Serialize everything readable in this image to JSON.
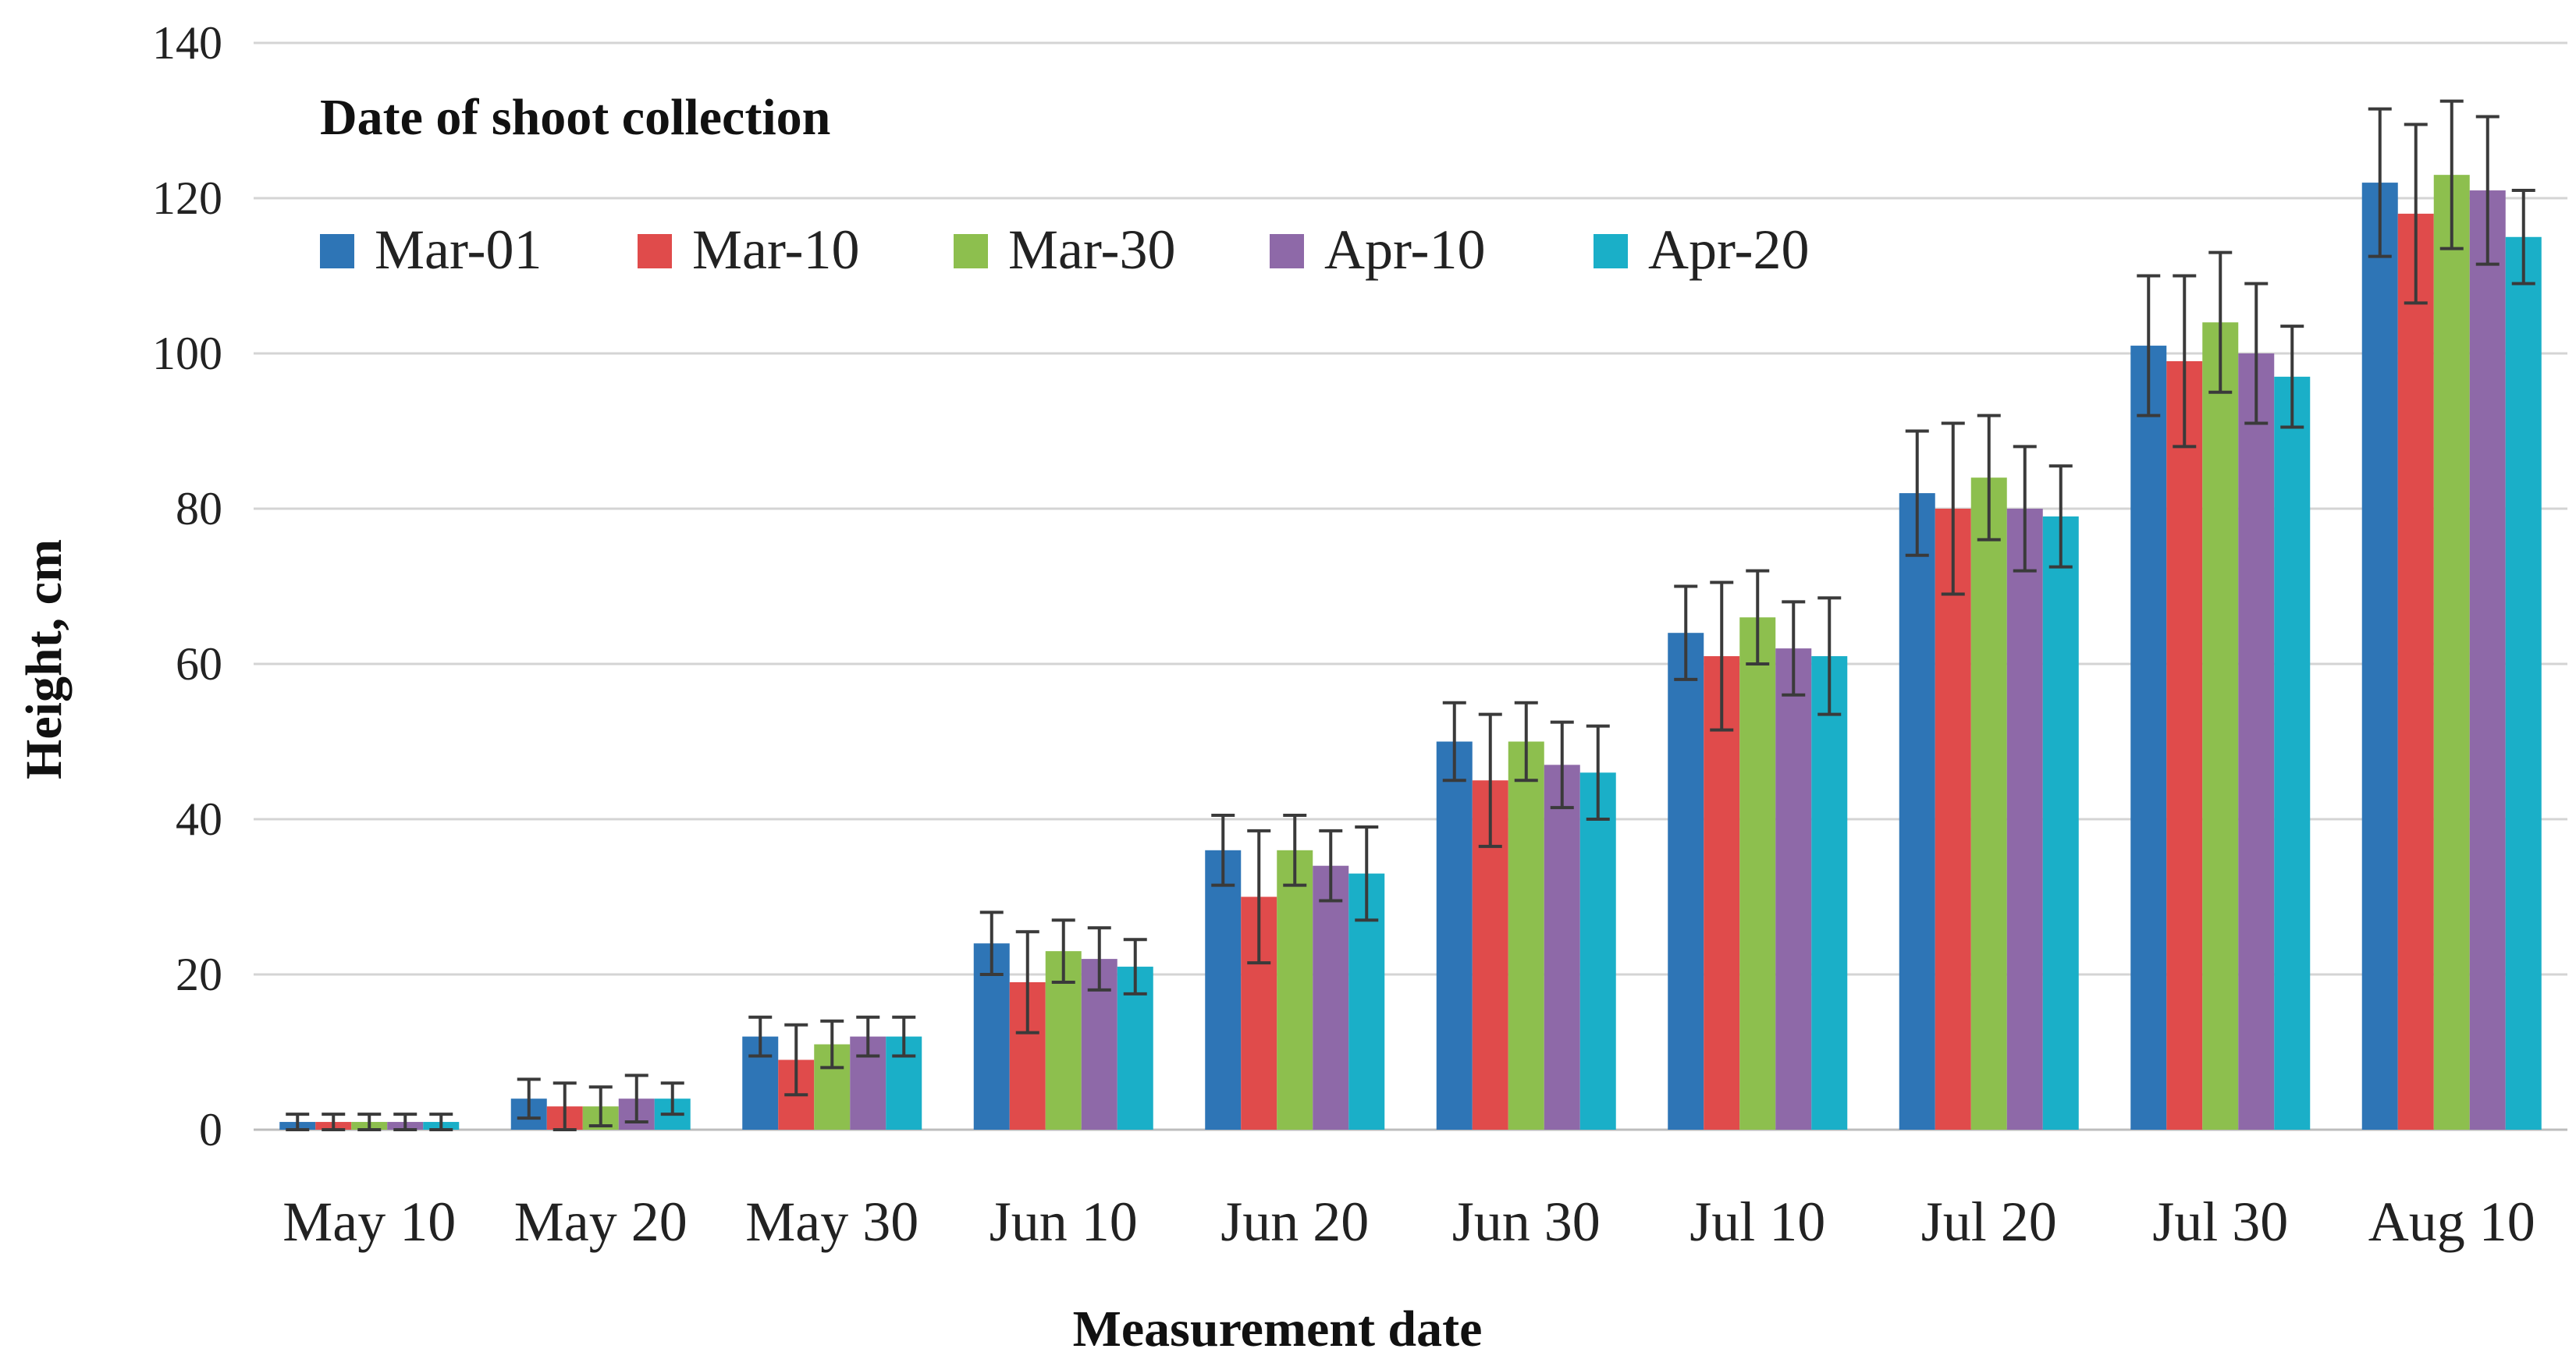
{
  "chart_data": {
    "type": "bar",
    "title": "",
    "xlabel": "Measurement date",
    "ylabel": "Height, cm",
    "ylim": [
      0,
      140
    ],
    "yticks": [
      0,
      20,
      40,
      60,
      80,
      100,
      120,
      140
    ],
    "grid": true,
    "legend": {
      "title": "Date of shoot collection",
      "placement": "top-left"
    },
    "categories": [
      "May 10",
      "May 20",
      "May 30",
      "Jun 10",
      "Jun 20",
      "Jun 30",
      "Jul 10",
      "Jul 20",
      "Jul 30",
      "Aug 10"
    ],
    "series": [
      {
        "name": "Mar-01",
        "color": "#2E75B6",
        "values": [
          1,
          4,
          12,
          24,
          36,
          50,
          64,
          82,
          101,
          122
        ],
        "errors": [
          1,
          2.5,
          2.5,
          4,
          4.5,
          5,
          6,
          8,
          9,
          9.5
        ]
      },
      {
        "name": "Mar-10",
        "color": "#E04B4B",
        "values": [
          1,
          3,
          9,
          19,
          30,
          45,
          61,
          80,
          99,
          118
        ],
        "errors": [
          1,
          3,
          4.5,
          6.5,
          8.5,
          8.5,
          9.5,
          11,
          11,
          11.5
        ]
      },
      {
        "name": "Mar-30",
        "color": "#8DBF4E",
        "values": [
          1,
          3,
          11,
          23,
          36,
          50,
          66,
          84,
          104,
          123
        ],
        "errors": [
          1,
          2.5,
          3,
          4,
          4.5,
          5,
          6,
          8,
          9,
          9.5
        ]
      },
      {
        "name": "Apr-10",
        "color": "#8E69A8",
        "values": [
          1,
          4,
          12,
          22,
          34,
          47,
          62,
          80,
          100,
          121
        ],
        "errors": [
          1,
          3,
          2.5,
          4,
          4.5,
          5.5,
          6,
          8,
          9,
          9.5
        ]
      },
      {
        "name": "Apr-20",
        "color": "#1AAFC8",
        "values": [
          1,
          4,
          12,
          21,
          33,
          46,
          61,
          79,
          97,
          115
        ],
        "errors": [
          1,
          2,
          2.5,
          3.5,
          6,
          6,
          7.5,
          6.5,
          6.5,
          6
        ]
      }
    ]
  }
}
